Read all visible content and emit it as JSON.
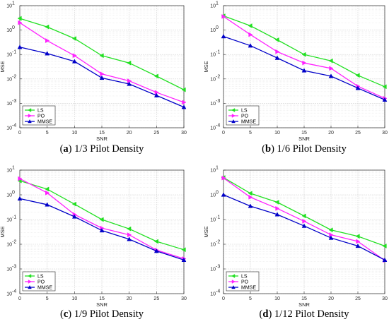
{
  "chart_data": [
    {
      "type": "line",
      "panel_letter": "a",
      "caption": "1/3 Pilot Density",
      "xlabel": "SNR",
      "ylabel": "MSE",
      "xlim": [
        0,
        30
      ],
      "ylim": [
        0.0001,
        10
      ],
      "yscale": "log",
      "grid": true,
      "legend_position": "bottom-left",
      "x_ticks": [
        "0",
        "5",
        "10",
        "15",
        "20",
        "25",
        "30"
      ],
      "y_tick_exponents": [
        "-4",
        "-3",
        "-2",
        "-1",
        "0",
        "1"
      ],
      "x": [
        0,
        5,
        10,
        15,
        20,
        25,
        30
      ],
      "series": [
        {
          "name": "LS",
          "color": "#22e022",
          "marker": "triangle-left",
          "values": [
            3.0,
            1.35,
            0.45,
            0.09,
            0.045,
            0.013,
            0.0036
          ]
        },
        {
          "name": "PO",
          "color": "#ff22ff",
          "marker": "triangle-right",
          "values": [
            2.0,
            0.37,
            0.09,
            0.016,
            0.0083,
            0.0028,
            0.0011
          ]
        },
        {
          "name": "MMSE",
          "color": "#0000c8",
          "marker": "triangle-up",
          "values": [
            0.2,
            0.11,
            0.052,
            0.011,
            0.0062,
            0.0021,
            0.0007
          ]
        }
      ]
    },
    {
      "type": "line",
      "panel_letter": "b",
      "caption": "1/6 Pilot Density",
      "xlabel": "SNR",
      "ylabel": "MSE",
      "xlim": [
        0,
        30
      ],
      "ylim": [
        0.0001,
        10
      ],
      "yscale": "log",
      "grid": true,
      "legend_position": "bottom-left",
      "x_ticks": [
        "0",
        "5",
        "10",
        "15",
        "20",
        "25",
        "30"
      ],
      "y_tick_exponents": [
        "-4",
        "-3",
        "-2",
        "-1",
        "0",
        "1"
      ],
      "x": [
        0,
        5,
        10,
        15,
        20,
        25,
        30
      ],
      "series": [
        {
          "name": "LS",
          "color": "#22e022",
          "marker": "triangle-left",
          "values": [
            3.8,
            1.5,
            0.4,
            0.1,
            0.055,
            0.014,
            0.0048
          ]
        },
        {
          "name": "PO",
          "color": "#ff22ff",
          "marker": "triangle-right",
          "values": [
            3.6,
            0.65,
            0.13,
            0.045,
            0.027,
            0.005,
            0.0016
          ]
        },
        {
          "name": "MMSE",
          "color": "#0000c8",
          "marker": "triangle-up",
          "values": [
            0.55,
            0.23,
            0.072,
            0.022,
            0.013,
            0.0042,
            0.0014
          ]
        }
      ]
    },
    {
      "type": "line",
      "panel_letter": "c",
      "caption": "1/9 Pilot Density",
      "xlabel": "SNR",
      "ylabel": "MSE",
      "xlim": [
        0,
        30
      ],
      "ylim": [
        0.0001,
        10
      ],
      "yscale": "log",
      "grid": true,
      "legend_position": "bottom-left",
      "x_ticks": [
        "0",
        "5",
        "10",
        "15",
        "20",
        "25",
        "30"
      ],
      "y_tick_exponents": [
        "-4",
        "-3",
        "-2",
        "-1",
        "0",
        "1"
      ],
      "x": [
        0,
        5,
        10,
        15,
        20,
        25,
        30
      ],
      "series": [
        {
          "name": "LS",
          "color": "#22e022",
          "marker": "triangle-left",
          "values": [
            3.7,
            1.7,
            0.42,
            0.1,
            0.042,
            0.013,
            0.006
          ]
        },
        {
          "name": "PO",
          "color": "#ff22ff",
          "marker": "triangle-right",
          "values": [
            4.5,
            1.2,
            0.16,
            0.045,
            0.024,
            0.0058,
            0.0026
          ]
        },
        {
          "name": "MMSE",
          "color": "#0000c8",
          "marker": "triangle-up",
          "values": [
            0.7,
            0.4,
            0.13,
            0.036,
            0.016,
            0.0053,
            0.0023
          ]
        }
      ]
    },
    {
      "type": "line",
      "panel_letter": "d",
      "caption": "1/12 Pilot Density",
      "xlabel": "SNR",
      "ylabel": "MSE",
      "xlim": [
        0,
        30
      ],
      "ylim": [
        0.0001,
        10
      ],
      "yscale": "log",
      "grid": true,
      "legend_position": "bottom-left",
      "x_ticks": [
        "0",
        "5",
        "10",
        "15",
        "20",
        "25",
        "30"
      ],
      "y_tick_exponents": [
        "-4",
        "-3",
        "-2",
        "-1",
        "0",
        "1"
      ],
      "x": [
        0,
        5,
        10,
        15,
        20,
        25,
        30
      ],
      "series": [
        {
          "name": "LS",
          "color": "#22e022",
          "marker": "triangle-left",
          "values": [
            5.0,
            1.15,
            0.5,
            0.14,
            0.038,
            0.021,
            0.0085
          ]
        },
        {
          "name": "PO",
          "color": "#ff22ff",
          "marker": "triangle-right",
          "values": [
            4.8,
            0.8,
            0.28,
            0.085,
            0.024,
            0.013,
            0.0022
          ]
        },
        {
          "name": "MMSE",
          "color": "#0000c8",
          "marker": "triangle-up",
          "values": [
            1.0,
            0.35,
            0.16,
            0.055,
            0.018,
            0.0085,
            0.0023
          ]
        }
      ]
    }
  ]
}
